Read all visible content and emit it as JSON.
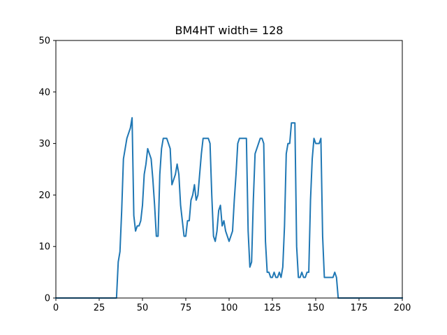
{
  "chart_data": {
    "type": "line",
    "title": "BM4HT width= 128",
    "xlabel": "",
    "ylabel": "",
    "xlim": [
      0,
      200
    ],
    "ylim": [
      0,
      50
    ],
    "xticks": [
      0,
      25,
      50,
      75,
      100,
      125,
      150,
      175,
      200
    ],
    "yticks": [
      0,
      10,
      20,
      30,
      40,
      50
    ],
    "grid": false,
    "series": [
      {
        "color": "#1f77b4",
        "x": [
          0,
          10,
          20,
          30,
          35,
          36,
          37,
          38,
          39,
          40,
          41,
          42,
          43,
          44,
          45,
          46,
          47,
          48,
          49,
          50,
          51,
          52,
          53,
          54,
          55,
          56,
          57,
          58,
          59,
          60,
          61,
          62,
          63,
          64,
          65,
          66,
          67,
          68,
          69,
          70,
          71,
          72,
          73,
          74,
          75,
          76,
          77,
          78,
          79,
          80,
          81,
          82,
          83,
          84,
          85,
          86,
          87,
          88,
          89,
          90,
          91,
          92,
          93,
          94,
          95,
          96,
          97,
          98,
          99,
          100,
          101,
          102,
          103,
          104,
          105,
          106,
          107,
          108,
          109,
          110,
          111,
          112,
          113,
          114,
          115,
          116,
          117,
          118,
          119,
          120,
          121,
          122,
          123,
          124,
          125,
          126,
          127,
          128,
          129,
          130,
          131,
          132,
          133,
          134,
          135,
          136,
          137,
          138,
          139,
          140,
          141,
          142,
          143,
          144,
          145,
          146,
          147,
          148,
          149,
          150,
          151,
          152,
          153,
          154,
          155,
          156,
          157,
          158,
          159,
          160,
          161,
          162,
          163,
          164,
          170,
          180,
          190,
          200
        ],
        "y": [
          0,
          0,
          0,
          0,
          0,
          7,
          9,
          17,
          27,
          29,
          31,
          32,
          33,
          35,
          16,
          13,
          14,
          14,
          15,
          18,
          24,
          26,
          29,
          28,
          27,
          23,
          18,
          12,
          12,
          24,
          29,
          31,
          31,
          31,
          30,
          29,
          22,
          23,
          24,
          26,
          24,
          18,
          15,
          12,
          12,
          15,
          15,
          19,
          20,
          22,
          19,
          20,
          24,
          28,
          31,
          31,
          31,
          31,
          30,
          20,
          12,
          11,
          13,
          17,
          18,
          14,
          15,
          13,
          12,
          11,
          12,
          13,
          19,
          24,
          30,
          31,
          31,
          31,
          31,
          31,
          13,
          6,
          7,
          19,
          28,
          29,
          30,
          31,
          31,
          30,
          11,
          5,
          5,
          4,
          4,
          5,
          4,
          4,
          5,
          4,
          6,
          14,
          28,
          30,
          30,
          34,
          34,
          34,
          10,
          4,
          4,
          5,
          4,
          4,
          5,
          5,
          19,
          27,
          31,
          30,
          30,
          30,
          31,
          12,
          4,
          4,
          4,
          4,
          4,
          4,
          5,
          4,
          0,
          0,
          0,
          0,
          0,
          0
        ]
      }
    ]
  }
}
